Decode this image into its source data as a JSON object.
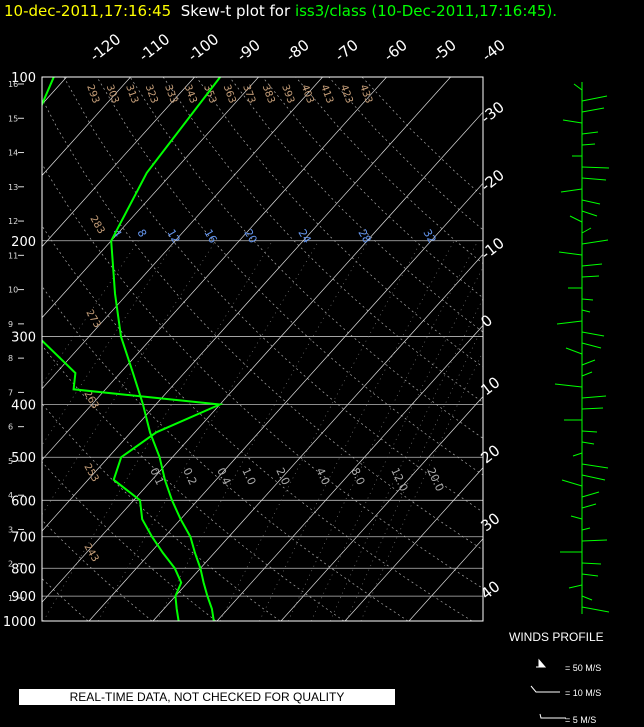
{
  "header": {
    "datetime": "10-dec-2011,17:16:45",
    "plot_label": "Skew-t plot for",
    "station": "iss3/class",
    "paren": "(10-Dec-2011,17:16:45)."
  },
  "quality_notice": "REAL-TIME DATA, NOT CHECKED FOR QUALITY",
  "winds_profile": {
    "title": "WINDS PROFILE",
    "legend": [
      "= 50 M/S",
      "= 10 M/S",
      "= 5 M/S"
    ]
  },
  "colors": {
    "temperature": "#00ff00",
    "dewpoint": "#00ff00",
    "grid": "#ffffff",
    "title_date": "#ffff00",
    "mixing_ratio_label": "#6495ed",
    "adiabat_label": "#c8a07a"
  },
  "chart_data": {
    "type": "line",
    "title": "Skew-t plot",
    "pressure_levels": [
      100,
      200,
      300,
      400,
      500,
      600,
      700,
      800,
      900,
      1000
    ],
    "height_km_ticks": [
      1,
      2,
      3,
      4,
      5,
      6,
      7,
      8,
      9,
      10,
      11,
      12,
      13,
      14,
      15,
      16
    ],
    "temperature_ticks_top": [
      -120,
      -110,
      -100,
      -90,
      -80,
      -70,
      -60,
      -50,
      -40
    ],
    "temperature_ticks_right": [
      -30,
      -20,
      -10,
      0,
      10,
      20,
      30,
      40
    ],
    "dry_adiabat_labels": [
      293,
      303,
      313,
      323,
      333,
      343,
      353,
      363,
      373,
      383,
      393,
      403,
      413,
      423,
      433,
      283,
      273,
      263,
      253,
      243
    ],
    "mixing_ratio_labels_upper": [
      "4",
      "8",
      "12",
      "16",
      "20",
      "24",
      "28",
      "32"
    ],
    "mixing_ratio_labels_lower": [
      "0.1",
      "0.2",
      "0.4",
      "1.0",
      "2.0",
      "4.0",
      "8.0",
      "12.0",
      "20.0"
    ],
    "series": [
      {
        "name": "temperature",
        "pressure": [
          1000,
          950,
          900,
          850,
          800,
          750,
          700,
          650,
          600,
          550,
          500,
          450,
          400,
          350,
          300,
          250,
          200,
          150,
          100
        ],
        "values": [
          9.5,
          7.5,
          5,
          2.5,
          0,
          -3,
          -6,
          -10,
          -14,
          -18,
          -22,
          -27,
          -32,
          -38,
          -45,
          -52,
          -60,
          -64,
          -66
        ]
      },
      {
        "name": "dewpoint",
        "pressure": [
          1000,
          950,
          900,
          850,
          800,
          750,
          700,
          650,
          600,
          550,
          500,
          450,
          400,
          375,
          350,
          300,
          250,
          200,
          150,
          100
        ],
        "values": [
          4,
          2,
          0,
          -1,
          -4,
          -8,
          -12,
          -16,
          -19,
          -26,
          -28,
          -26,
          -20,
          -45,
          -47,
          -58,
          -70,
          -78,
          -85,
          -92
        ]
      }
    ]
  }
}
